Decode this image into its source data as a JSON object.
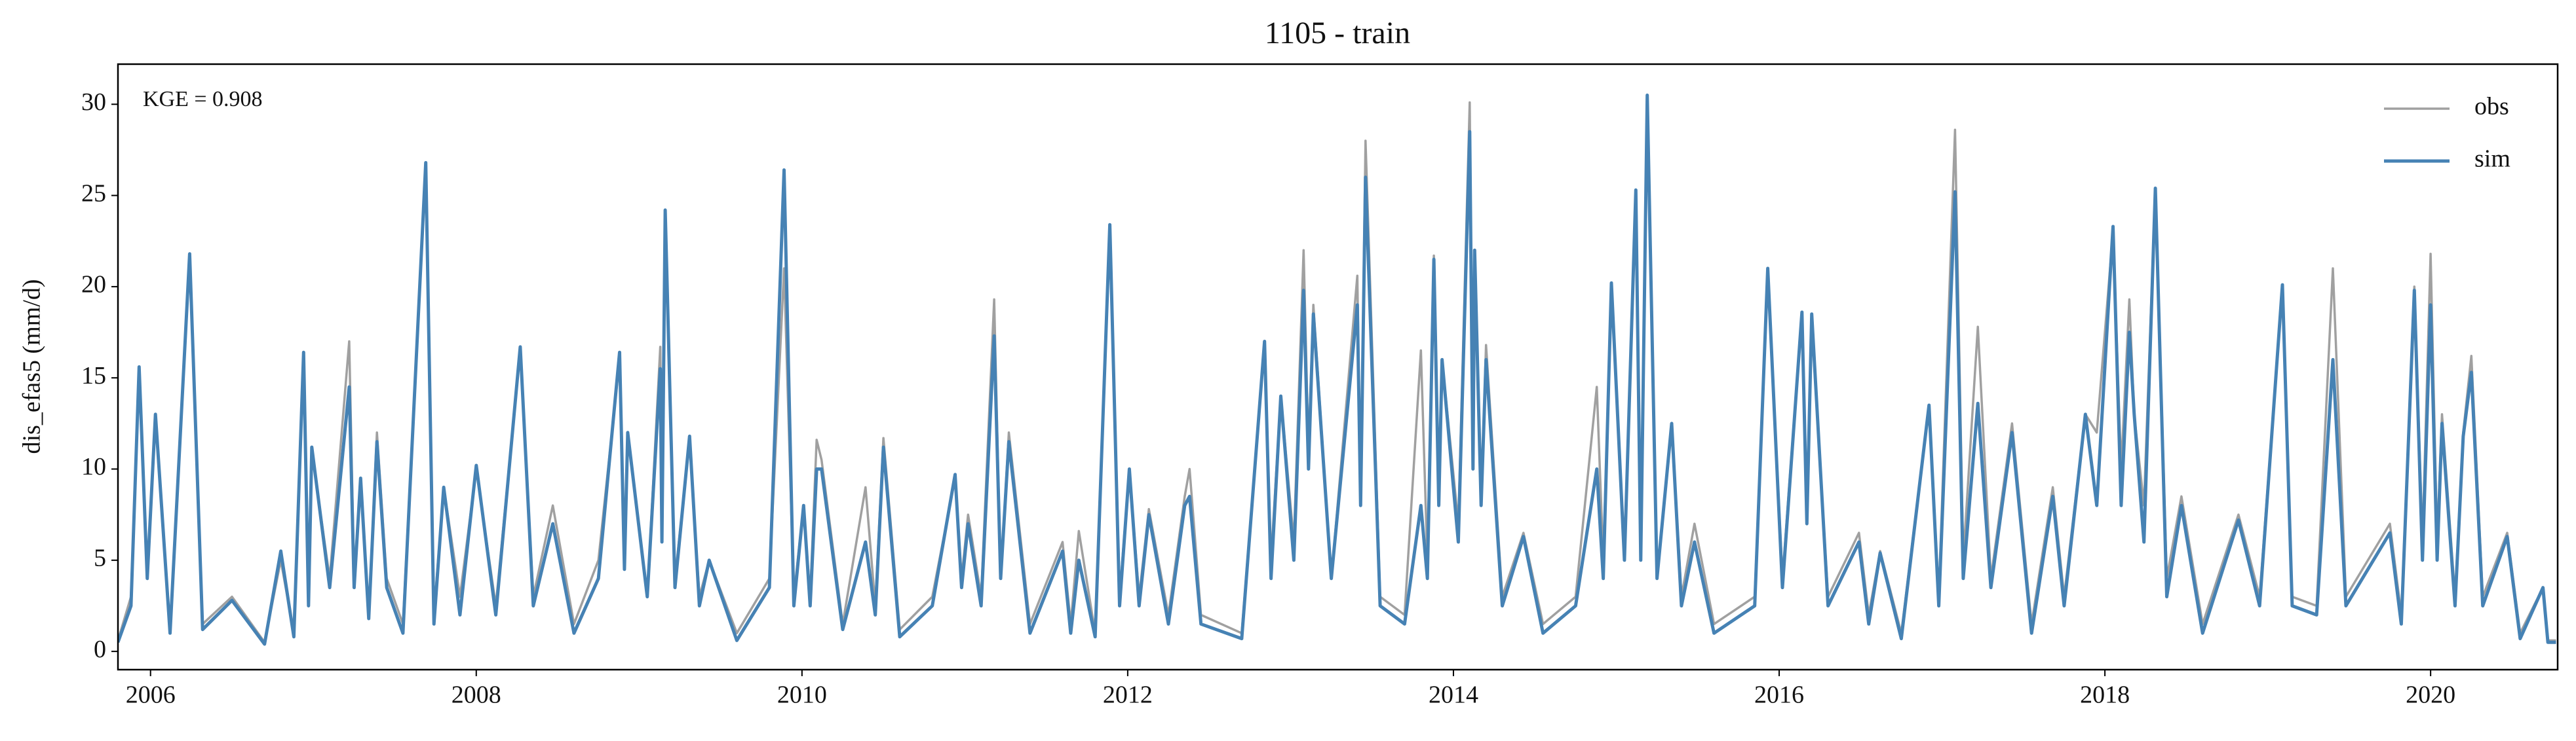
{
  "chart_data": {
    "type": "line",
    "title": "1105 - train",
    "ylabel": "dis_efas5 (mm/d)",
    "annotation": "KGE = 0.908",
    "legend": "upper right",
    "xlim": [
      2005.8,
      2020.78
    ],
    "xticks": [
      2006,
      2008,
      2010,
      2012,
      2014,
      2016,
      2018,
      2020
    ],
    "ylim": [
      -1,
      32.2
    ],
    "yticks": [
      0,
      5,
      10,
      15,
      20,
      25,
      30
    ],
    "x": [
      2005.8,
      2005.88,
      2005.93,
      2005.98,
      2006.03,
      2006.12,
      2006.24,
      2006.32,
      2006.5,
      2006.7,
      2006.8,
      2006.88,
      2006.94,
      2006.97,
      2006.99,
      2007.1,
      2007.22,
      2007.25,
      2007.29,
      2007.34,
      2007.39,
      2007.45,
      2007.55,
      2007.69,
      2007.74,
      2007.8,
      2007.9,
      2008.0,
      2008.12,
      2008.27,
      2008.35,
      2008.47,
      2008.6,
      2008.75,
      2008.88,
      2008.91,
      2008.93,
      2009.05,
      2009.13,
      2009.14,
      2009.16,
      2009.22,
      2009.31,
      2009.37,
      2009.43,
      2009.6,
      2009.8,
      2009.89,
      2009.95,
      2010.01,
      2010.05,
      2010.09,
      2010.12,
      2010.25,
      2010.39,
      2010.45,
      2010.5,
      2010.6,
      2010.8,
      2010.94,
      2010.98,
      2011.02,
      2011.1,
      2011.18,
      2011.22,
      2011.27,
      2011.4,
      2011.6,
      2011.65,
      2011.7,
      2011.8,
      2011.89,
      2011.95,
      2012.01,
      2012.07,
      2012.13,
      2012.25,
      2012.35,
      2012.38,
      2012.45,
      2012.7,
      2012.84,
      2012.88,
      2012.94,
      2013.02,
      2013.08,
      2013.11,
      2013.14,
      2013.25,
      2013.41,
      2013.43,
      2013.46,
      2013.55,
      2013.7,
      2013.8,
      2013.84,
      2013.88,
      2013.91,
      2013.93,
      2014.03,
      2014.1,
      2014.12,
      2014.13,
      2014.17,
      2014.2,
      2014.3,
      2014.43,
      2014.55,
      2014.75,
      2014.88,
      2014.92,
      2014.97,
      2015.05,
      2015.12,
      2015.15,
      2015.19,
      2015.25,
      2015.34,
      2015.4,
      2015.48,
      2015.6,
      2015.85,
      2015.93,
      2016.02,
      2016.14,
      2016.17,
      2016.2,
      2016.3,
      2016.49,
      2016.55,
      2016.62,
      2016.75,
      2016.92,
      2016.98,
      2017.08,
      2017.13,
      2017.22,
      2017.3,
      2017.43,
      2017.55,
      2017.68,
      2017.75,
      2017.88,
      2017.95,
      2018.05,
      2018.1,
      2018.15,
      2018.18,
      2018.24,
      2018.31,
      2018.38,
      2018.47,
      2018.6,
      2018.82,
      2018.95,
      2019.09,
      2019.15,
      2019.3,
      2019.4,
      2019.48,
      2019.75,
      2019.82,
      2019.9,
      2019.95,
      2020.0,
      2020.04,
      2020.07,
      2020.15,
      2020.2,
      2020.25,
      2020.32,
      2020.47,
      2020.55,
      2020.69,
      2020.72,
      2020.77
    ],
    "series": [
      {
        "name": "obs",
        "color": "#a0a0a0",
        "values": [
          0.6,
          3,
          15.5,
          4,
          13,
          1.2,
          21.5,
          1.5,
          3,
          0.5,
          5,
          1,
          16,
          3,
          11,
          4,
          17,
          4,
          9.5,
          2,
          12,
          4,
          1.5,
          26.5,
          2,
          9,
          3,
          10,
          2.5,
          16.5,
          3,
          8,
          1.5,
          5,
          16,
          5,
          12,
          3,
          16.7,
          6,
          23.5,
          4,
          11.5,
          3,
          5,
          1,
          4,
          21,
          3,
          8,
          3,
          11.6,
          10.5,
          1.5,
          9,
          2.5,
          11.7,
          1.2,
          3,
          9.5,
          4,
          7.5,
          3,
          19.3,
          4,
          12,
          1.5,
          6,
          1.5,
          6.6,
          1,
          23,
          3,
          10,
          3,
          7.8,
          2,
          8.5,
          10,
          2,
          1,
          17,
          5,
          14,
          6,
          22,
          11,
          19,
          4,
          20.6,
          8,
          28,
          3,
          2,
          16.5,
          5,
          21.7,
          8,
          16,
          7,
          30.1,
          10,
          22,
          8,
          16.8,
          3,
          6.5,
          1.5,
          3,
          14.5,
          5,
          20,
          5,
          25,
          6,
          30.3,
          4,
          12.5,
          3,
          7,
          1.5,
          3,
          21,
          4,
          18.6,
          8,
          18,
          3,
          6.5,
          2,
          5.5,
          1,
          13.5,
          3,
          28.6,
          5,
          17.8,
          4,
          12.5,
          1.5,
          9,
          3,
          13,
          12,
          23,
          10,
          19.3,
          13,
          8,
          25.4,
          4,
          8.5,
          1.5,
          7.5,
          3,
          20,
          3,
          2.5,
          21,
          3,
          7,
          2,
          20,
          6,
          21.8,
          6,
          13,
          3,
          12,
          16.2,
          3,
          6.5,
          1,
          3.5,
          0.6,
          0.6
        ]
      },
      {
        "name": "sim",
        "color": "#4682b4",
        "values": [
          0.5,
          2.5,
          15.6,
          4,
          13,
          1.0,
          21.8,
          1.2,
          2.8,
          0.4,
          5.5,
          0.8,
          16.4,
          2.5,
          11.2,
          3.5,
          14.5,
          3.5,
          9.5,
          1.8,
          11.5,
          3.5,
          1,
          26.8,
          1.5,
          9,
          2,
          10.2,
          2,
          16.7,
          2.5,
          7,
          1,
          4,
          16.4,
          4.5,
          12,
          3,
          15.5,
          6,
          24.2,
          3.5,
          11.8,
          2.5,
          5,
          0.6,
          3.5,
          26.4,
          2.5,
          8,
          2.5,
          10,
          10,
          1.2,
          6,
          2,
          11.2,
          0.8,
          2.5,
          9.7,
          3.5,
          7,
          2.5,
          17.3,
          4,
          11.5,
          1,
          5.5,
          1,
          5,
          0.8,
          23.4,
          2.5,
          10,
          2.5,
          7.5,
          1.5,
          8,
          8.5,
          1.5,
          0.7,
          17,
          4,
          14,
          5,
          19.8,
          10,
          18.5,
          4,
          19,
          8,
          26,
          2.5,
          1.5,
          8,
          4,
          21.5,
          8,
          16,
          6,
          28.5,
          10,
          22,
          8,
          16,
          2.5,
          6.3,
          1,
          2.5,
          10,
          4,
          20.2,
          5,
          25.3,
          5,
          30.5,
          4,
          12.5,
          2.5,
          6,
          1,
          2.5,
          21,
          3.5,
          18.6,
          7,
          18.5,
          2.5,
          6,
          1.5,
          5.4,
          0.7,
          13.5,
          2.5,
          25.2,
          4,
          13.6,
          3.5,
          12,
          1,
          8.5,
          2.5,
          13,
          8,
          23.3,
          8,
          17.5,
          13,
          6,
          25.4,
          3,
          8,
          1,
          7.2,
          2.5,
          20.1,
          2.5,
          2,
          16,
          2.5,
          6.5,
          1.5,
          19.8,
          5,
          19,
          5,
          12.5,
          2.5,
          11.8,
          15.3,
          2.5,
          6.3,
          0.7,
          3.5,
          0.5,
          0.5
        ]
      }
    ]
  }
}
